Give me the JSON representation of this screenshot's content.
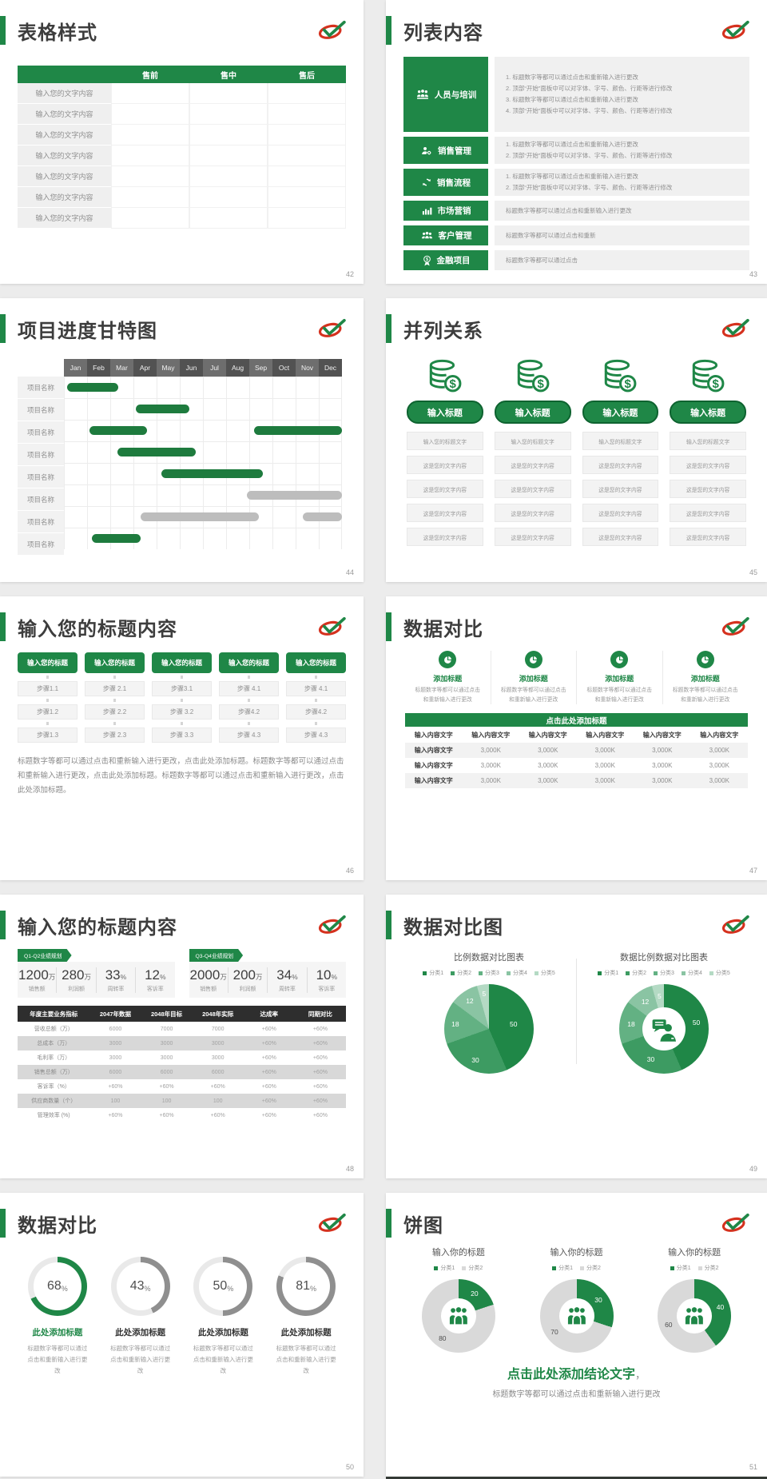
{
  "brand": {
    "green": "#1F8747",
    "dark_green": "#0E6330",
    "red": "#D5311E",
    "gray_bar": "#BDBDBD"
  },
  "slides": {
    "s42": {
      "title": "表格样式",
      "page": "42",
      "table": {
        "headers": [
          "",
          "售前",
          "售中",
          "售后"
        ],
        "row_label": "输入您的文字内容",
        "row_count": 7
      }
    },
    "s43": {
      "title": "列表内容",
      "page": "43",
      "items": [
        {
          "label": "人员与培训",
          "icon": "people-training-icon",
          "lines": [
            "1.  标题数字等都可以通过点击和重新输入进行更改",
            "2.  顶部“开始”面板中可以对字体、字号、颜色、行距等进行修改",
            "3.  标题数字等都可以通过点击和重新输入进行更改",
            "4.  顶部“开始”面板中可以对字体、字号、颜色、行距等进行修改"
          ]
        },
        {
          "label": "销售管理",
          "icon": "sales-management-icon",
          "lines": [
            "1.  标题数字等都可以通过点击和重新输入进行更改",
            "2.  顶部“开始”面板中可以对字体、字号、颜色、行距等进行修改"
          ]
        },
        {
          "label": "销售流程",
          "icon": "sales-process-icon",
          "lines": [
            "1.  标题数字等都可以通过点击和重新输入进行更改",
            "2.  顶部“开始”面板中可以对字体、字号、颜色、行距等进行修改"
          ]
        },
        {
          "label": "市场营销",
          "icon": "marketing-icon",
          "lines": [
            "标题数字等都可以通过点击和重新输入进行更改"
          ]
        },
        {
          "label": "客户管理",
          "icon": "customer-management-icon",
          "lines": [
            "标题数字等都可以通过点击和重新"
          ]
        },
        {
          "label": "金融项目",
          "icon": "finance-icon",
          "lines": [
            "标题数字等都可以通过点击"
          ]
        }
      ]
    },
    "s44": {
      "title": "项目进度甘特图",
      "page": "44"
    },
    "s45": {
      "title": "并列关系",
      "page": "45",
      "column_count": 4,
      "icon": "coins-dollar-icon",
      "pill": "输入标题",
      "rows": [
        "输入您的标题文字",
        "这是您的文字内容",
        "这是您的文字内容",
        "这是您的文字内容",
        "这是您的文字内容"
      ]
    },
    "s46": {
      "title": "输入您的标题内容",
      "page": "46",
      "columns": [
        {
          "header": "输入您的标题",
          "steps": [
            "步骤1.1",
            "步骤1.2",
            "步骤1.3"
          ]
        },
        {
          "header": "输入您的标题",
          "steps": [
            "步骤 2.1",
            "步骤 2.2",
            "步骤 2.3"
          ]
        },
        {
          "header": "输入您的标题",
          "steps": [
            "步骤3.1",
            "步骤 3.2",
            "步骤 3.3"
          ]
        },
        {
          "header": "输入您的标题",
          "steps": [
            "步骤 4.1",
            "步骤4.2",
            "步骤 4.3"
          ]
        },
        {
          "header": "输入您的标题",
          "steps": [
            "步骤 4.1",
            "步骤4.2",
            "步骤 4.3"
          ]
        }
      ],
      "paragraph": "标题数字等都可以通过点击和重新输入进行更改，点击此处添加标题。标题数字等都可以通过点击和重新输入进行更改，点击此处添加标题。标题数字等都可以通过点击和重新输入进行更改，点击此处添加标题。"
    },
    "s47": {
      "title": "数据对比",
      "page": "47",
      "features": [
        {
          "icon": "pie-chart-icon",
          "title": "添加标题",
          "desc": "标题数字等都可以通过点击和重新输入进行更改"
        },
        {
          "icon": "pie-chart-icon",
          "title": "添加标题",
          "desc": "标题数字等都可以通过点击和重新输入进行更改"
        },
        {
          "icon": "pie-chart-icon",
          "title": "添加标题",
          "desc": "标题数字等都可以通过点击和重新输入进行更改"
        },
        {
          "icon": "pie-chart-icon",
          "title": "添加标题",
          "desc": "标题数字等都可以通过点击和重新输入进行更改"
        }
      ],
      "bar_title": "点击此处添加标题",
      "table": {
        "headers": [
          "输入内容文字",
          "输入内容文字",
          "输入内容文字",
          "输入内容文字",
          "输入内容文字",
          "输入内容文字"
        ],
        "rows": [
          [
            "输入内容文字",
            "3,000K",
            "3,000K",
            "3,000K",
            "3,000K",
            "3,000K"
          ],
          [
            "输入内容文字",
            "3,000K",
            "3,000K",
            "3,000K",
            "3,000K",
            "3,000K"
          ],
          [
            "输入内容文字",
            "3,000K",
            "3,000K",
            "3,000K",
            "3,000K",
            "3,000K"
          ]
        ]
      }
    },
    "s48": {
      "title": "输入您的标题内容",
      "page": "48",
      "groups": [
        {
          "tag": "Q1-Q2业绩规划",
          "stats": [
            {
              "value": "1200",
              "suffix": "万",
              "label": "销售额"
            },
            {
              "value": "280",
              "suffix": "万",
              "label": "利润额"
            },
            {
              "value": "33",
              "suffix": "%",
              "label": "周转率"
            },
            {
              "value": "12",
              "suffix": "%",
              "label": "客诉率"
            }
          ]
        },
        {
          "tag": "Q3-Q4业绩规划",
          "stats": [
            {
              "value": "2000",
              "suffix": "万",
              "label": "销售额"
            },
            {
              "value": "200",
              "suffix": "万",
              "label": "利润额"
            },
            {
              "value": "34",
              "suffix": "%",
              "label": "周转率"
            },
            {
              "value": "10",
              "suffix": "%",
              "label": "客诉率"
            }
          ]
        }
      ],
      "table": {
        "headers": [
          "年度主要业务指标",
          "2047年数据",
          "2048年目标",
          "2048年实际",
          "达成率",
          "同期对比"
        ],
        "rows": [
          [
            "营收总额（万）",
            "6000",
            "7000",
            "7000",
            "+60%",
            "+60%"
          ],
          [
            "总成本（万）",
            "3000",
            "3000",
            "3000",
            "+60%",
            "+60%"
          ],
          [
            "毛利率（万）",
            "3000",
            "3000",
            "3000",
            "+60%",
            "+60%"
          ],
          [
            "销售总额（万）",
            "6000",
            "6000",
            "6000",
            "+60%",
            "+60%"
          ],
          [
            "客诉率（%）",
            "+60%",
            "+60%",
            "+60%",
            "+60%",
            "+60%"
          ],
          [
            "供应商数量（个）",
            "100",
            "100",
            "100",
            "+60%",
            "+60%"
          ],
          [
            "管理效率 (%)",
            "+60%",
            "+60%",
            "+60%",
            "+60%",
            "+60%"
          ]
        ]
      }
    },
    "s49": {
      "title": "数据对比图",
      "page": "49"
    },
    "s50": {
      "title": "数据对比",
      "page": "50",
      "item_title": "此处添加标题",
      "item_desc": "标题数字等都可以通过点击和重新输入进行更改"
    },
    "s51": {
      "title": "饼图",
      "page": "51",
      "conclusion": "点击此处添加结论文字",
      "conclusion_comma": "，",
      "note": "标题数字等都可以通过点击和重新输入进行更改"
    }
  },
  "chart_data": [
    {
      "id": "gantt-44",
      "type": "gantt",
      "months": [
        "Jan",
        "Feb",
        "Mar",
        "Apr",
        "May",
        "Jun",
        "Jul",
        "Aug",
        "Sep",
        "Oct",
        "Nov",
        "Dec"
      ],
      "row_label": "项目名称",
      "row_count": 8,
      "bars": [
        {
          "row": 0,
          "start": 0.15,
          "span": 2.2,
          "color": "green"
        },
        {
          "row": 1,
          "start": 3.1,
          "span": 2.3,
          "color": "green"
        },
        {
          "row": 2,
          "start": 1.1,
          "span": 2.5,
          "color": "green"
        },
        {
          "row": 2,
          "start": 8.2,
          "span": 3.8,
          "color": "green"
        },
        {
          "row": 3,
          "start": 2.3,
          "span": 3.4,
          "color": "green"
        },
        {
          "row": 4,
          "start": 4.2,
          "span": 4.4,
          "color": "green"
        },
        {
          "row": 5,
          "start": 7.9,
          "span": 4.1,
          "color": "gray"
        },
        {
          "row": 6,
          "start": 3.3,
          "span": 5.1,
          "color": "gray"
        },
        {
          "row": 6,
          "start": 10.3,
          "span": 1.7,
          "color": "gray"
        },
        {
          "row": 7,
          "start": 1.2,
          "span": 2.1,
          "color": "green"
        }
      ]
    },
    {
      "id": "pie-49-left",
      "type": "pie",
      "title": "比例数据对比图表",
      "legend": [
        "分类1",
        "分类2",
        "分类3",
        "分类4",
        "分类5"
      ],
      "values": [
        50,
        30,
        18,
        12,
        5
      ],
      "colors": [
        "#1F8747",
        "#3D9B62",
        "#63B183",
        "#8AC4A3",
        "#B4DAC4"
      ]
    },
    {
      "id": "donut-49-right",
      "type": "donut",
      "title": "数据比例数据对比图表",
      "legend": [
        "分类1",
        "分类2",
        "分类3",
        "分类4",
        "分类5"
      ],
      "values": [
        50,
        30,
        18,
        12,
        5
      ],
      "colors": [
        "#1F8747",
        "#3D9B62",
        "#63B183",
        "#8AC4A3",
        "#B4DAC4"
      ],
      "center_icon": "person-chat-icon"
    },
    {
      "id": "gauges-50",
      "type": "gauge",
      "values": [
        68,
        43,
        50,
        81
      ],
      "unit": "%",
      "active_color": "#1F8747",
      "inactive_color": "#8F8F8F",
      "track_color": "#E9E9E9"
    },
    {
      "id": "donuts-51",
      "type": "donut",
      "titles": [
        "输入你的标题",
        "输入你的标题",
        "输入你的标题"
      ],
      "legend": [
        "分类1",
        "分类2"
      ],
      "series": [
        {
          "name": "chart-1",
          "values": [
            20,
            80
          ]
        },
        {
          "name": "chart-2",
          "values": [
            30,
            70
          ]
        },
        {
          "name": "chart-3",
          "values": [
            40,
            60
          ]
        }
      ],
      "colors": [
        "#1F8747",
        "#D9D9D9"
      ],
      "center_icon": "people-group-icon"
    }
  ]
}
